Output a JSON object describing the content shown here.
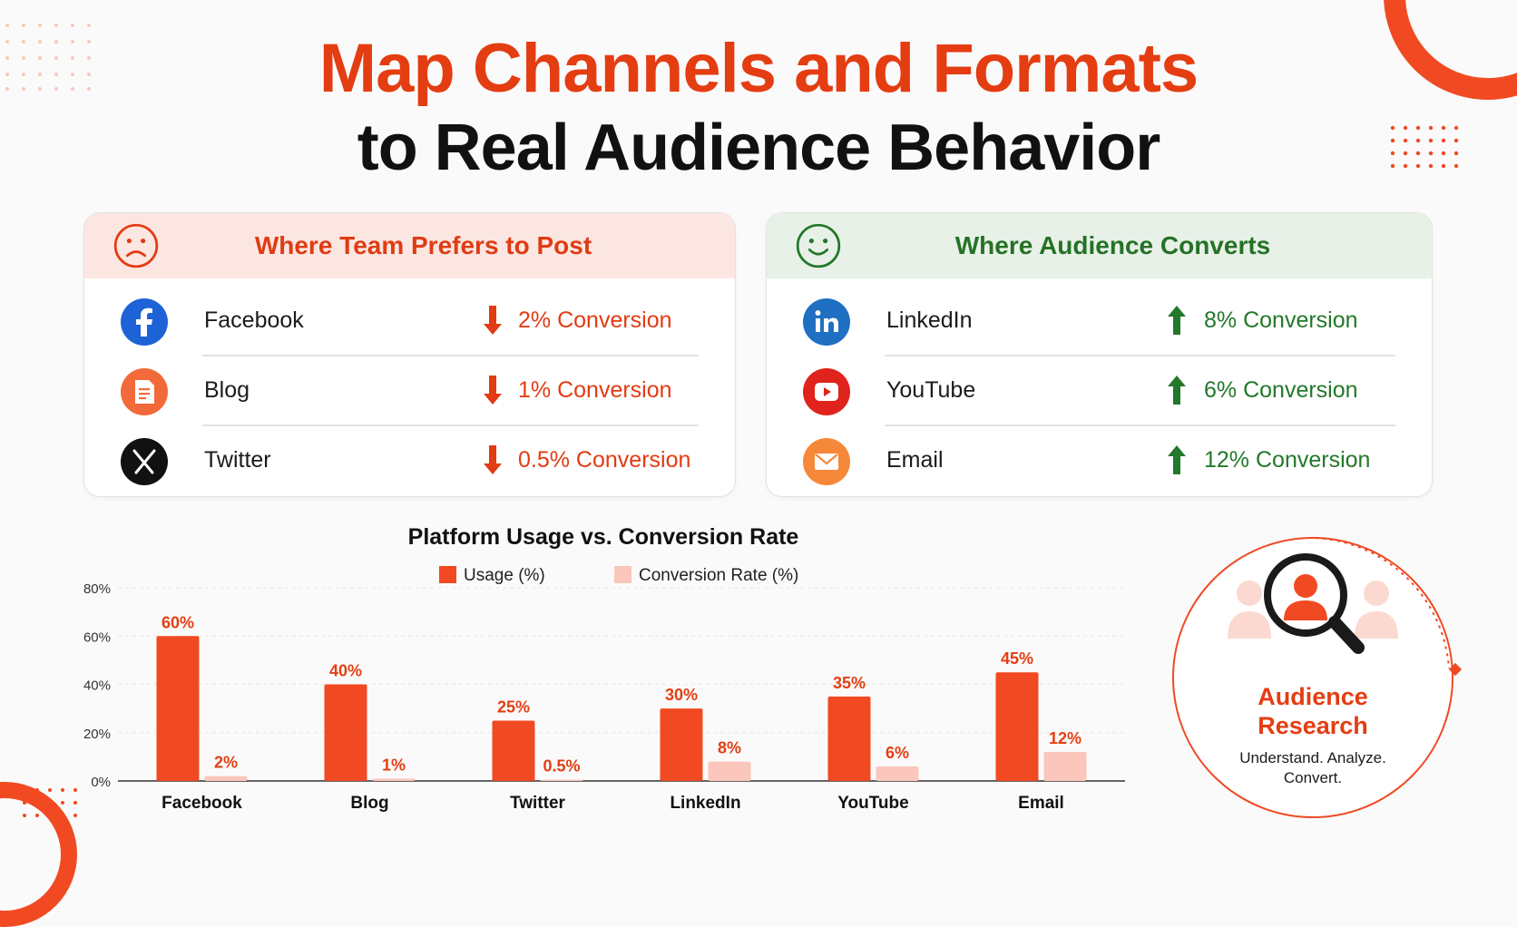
{
  "title_line1": "Map Channels and Formats",
  "title_line2": "to Real Audience Behavior",
  "colors": {
    "accent": "#e43d12",
    "bad": "#e33b13",
    "good": "#23782a",
    "usage_bar": "#f14a22",
    "conversion_bar": "#fbc6bb"
  },
  "team_panel": {
    "title": "Where Team Prefers to Post",
    "icon": "sad-face-icon",
    "rows": [
      {
        "name": "Facebook",
        "conversion": "2% Conversion",
        "icon": "facebook-icon",
        "direction": "down"
      },
      {
        "name": "Blog",
        "conversion": "1% Conversion",
        "icon": "blog-icon",
        "direction": "down"
      },
      {
        "name": "Twitter",
        "conversion": "0.5% Conversion",
        "icon": "x-twitter-icon",
        "direction": "down"
      }
    ]
  },
  "audience_panel": {
    "title": "Where Audience Converts",
    "icon": "happy-face-icon",
    "rows": [
      {
        "name": "LinkedIn",
        "conversion": "8% Conversion",
        "icon": "linkedin-icon",
        "direction": "up"
      },
      {
        "name": "YouTube",
        "conversion": "6% Conversion",
        "icon": "youtube-icon",
        "direction": "up"
      },
      {
        "name": "Email",
        "conversion": "12% Conversion",
        "icon": "email-icon",
        "direction": "up"
      }
    ]
  },
  "chart_data": {
    "type": "bar",
    "title": "Platform Usage vs. Conversion Rate",
    "categories": [
      "Facebook",
      "Blog",
      "Twitter",
      "LinkedIn",
      "YouTube",
      "Email"
    ],
    "series": [
      {
        "name": "Usage (%)",
        "values": [
          60,
          40,
          25,
          30,
          35,
          45
        ],
        "labels": [
          "60%",
          "40%",
          "25%",
          "30%",
          "35%",
          "45%"
        ],
        "color": "#f14a22"
      },
      {
        "name": "Conversion Rate (%)",
        "values": [
          2,
          1,
          0.5,
          8,
          6,
          12
        ],
        "labels": [
          "2%",
          "1%",
          "0.5%",
          "8%",
          "6%",
          "12%"
        ],
        "color": "#fbc6bb"
      }
    ],
    "yticks": [
      "0%",
      "20%",
      "40%",
      "60%",
      "80%"
    ],
    "ytick_values": [
      0,
      20,
      40,
      60,
      80
    ],
    "ylim": [
      0,
      80
    ],
    "grid": true,
    "legend_position": "top-center"
  },
  "audience_research": {
    "title_line1": "Audience",
    "title_line2": "Research",
    "subtitle_line1": "Understand. Analyze.",
    "subtitle_line2": "Convert.",
    "icon": "magnifier-user-icon"
  }
}
